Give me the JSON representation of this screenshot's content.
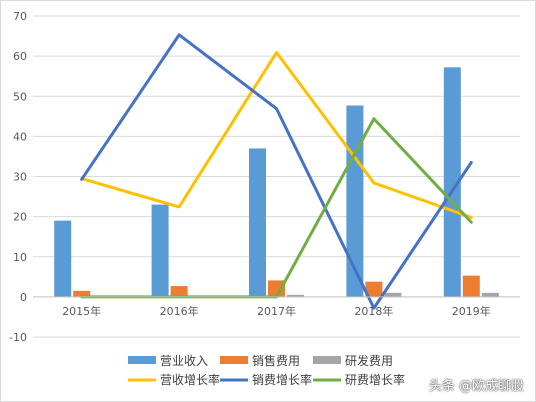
{
  "chart_data": {
    "type": "bar",
    "categories": [
      "2015年",
      "2016年",
      "2017年",
      "2018年",
      "2019年"
    ],
    "ylim": [
      -10,
      70
    ],
    "yticks": [
      -10,
      0,
      10,
      20,
      30,
      40,
      50,
      60,
      70
    ],
    "grid": true,
    "legend_position": "bottom",
    "bar_series": [
      {
        "name": "营业收入",
        "color": "#5B9BD5",
        "values": [
          19,
          23,
          37,
          47.7,
          57.2
        ]
      },
      {
        "name": "销售费用",
        "color": "#ED7D31",
        "values": [
          1.5,
          2.7,
          4.1,
          3.8,
          5.3
        ]
      },
      {
        "name": "研发费用",
        "color": "#A5A5A5",
        "values": [
          0,
          0,
          0.5,
          1.0,
          1.0
        ]
      }
    ],
    "line_series": [
      {
        "name": "营收增长率",
        "color": "#FFC000",
        "values": [
          29.5,
          22.4,
          60.9,
          28.4,
          19.8
        ]
      },
      {
        "name": "销费增长率",
        "color": "#4472C4",
        "values": [
          29.3,
          65.3,
          46.9,
          -2.8,
          33.5
        ]
      },
      {
        "name": "研费增长率",
        "color": "#70AD47",
        "values": [
          0,
          0,
          0,
          44.4,
          18.6
        ]
      }
    ]
  },
  "watermark": "头条 @欧成聊股"
}
